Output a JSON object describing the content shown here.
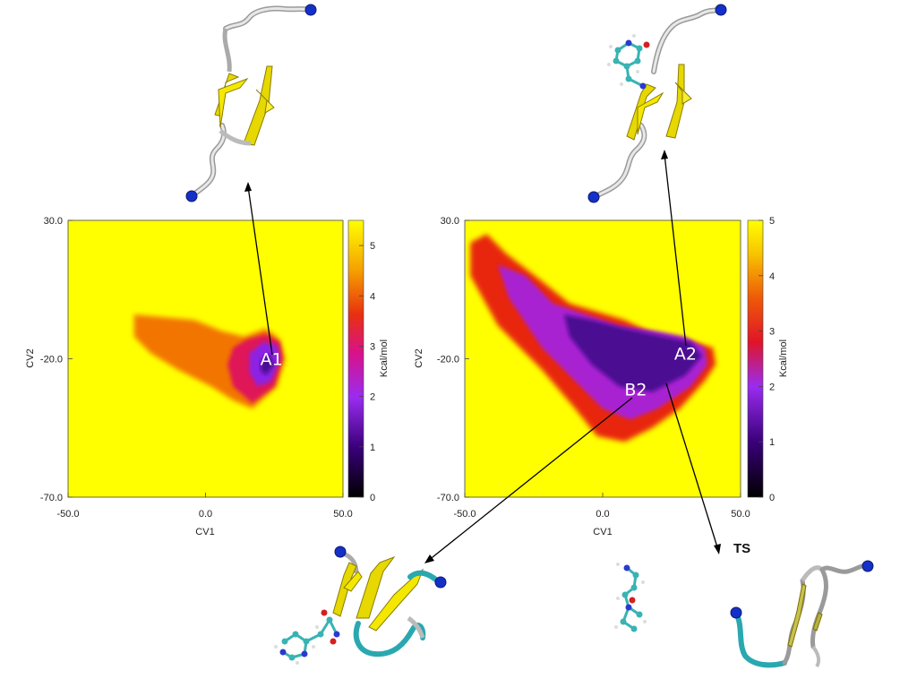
{
  "chart_data": [
    {
      "type": "heatmap",
      "title": "",
      "xlabel": "CV1",
      "ylabel": "CV2",
      "xlim": [
        -50,
        50
      ],
      "ylim": [
        -70,
        30
      ],
      "xticks": [
        "-50.0",
        "0.0",
        "50.0"
      ],
      "yticks": [
        "30.0",
        "-20.0",
        "-70.0"
      ],
      "colorbar": {
        "label": "Kcal/mol",
        "range": [
          0,
          5.5
        ],
        "ticks": [
          "0",
          "1",
          "2",
          "3",
          "4",
          "5"
        ]
      },
      "background_value": 5.5,
      "regions": [
        {
          "name": "outer",
          "value": 4.2,
          "points": [
            [
              -26,
              -4
            ],
            [
              -15,
              -5
            ],
            [
              -4,
              -6
            ],
            [
              6,
              -10
            ],
            [
              14,
              -12
            ],
            [
              22,
              -9
            ],
            [
              27,
              -13
            ],
            [
              29,
              -20
            ],
            [
              26,
              -30
            ],
            [
              17,
              -38
            ],
            [
              10,
              -35
            ],
            [
              2,
              -30
            ],
            [
              -10,
              -24
            ],
            [
              -20,
              -18
            ],
            [
              -26,
              -12
            ]
          ]
        },
        {
          "name": "mid",
          "value": 3.0,
          "points": [
            [
              10,
              -16
            ],
            [
              15,
              -13
            ],
            [
              22,
              -11
            ],
            [
              27,
              -14
            ],
            [
              28,
              -20
            ],
            [
              25,
              -30
            ],
            [
              17,
              -36
            ],
            [
              10,
              -30
            ],
            [
              8,
              -22
            ]
          ]
        },
        {
          "name": "basin",
          "value": 1.9,
          "points": [
            [
              16,
              -18
            ],
            [
              21,
              -14
            ],
            [
              26,
              -15
            ],
            [
              27,
              -20
            ],
            [
              24,
              -28
            ],
            [
              19,
              -30
            ],
            [
              16,
              -25
            ]
          ]
        },
        {
          "name": "core",
          "value": 1.2,
          "points": [
            [
              20,
              -21
            ],
            [
              23,
              -18
            ],
            [
              25,
              -22
            ],
            [
              22,
              -26
            ],
            [
              20,
              -24
            ]
          ]
        }
      ],
      "annotations": [
        {
          "text": "A1",
          "x": 24,
          "y": -20
        }
      ]
    },
    {
      "type": "heatmap",
      "title": "",
      "xlabel": "CV1",
      "ylabel": "CV2",
      "xlim": [
        -50,
        50
      ],
      "ylim": [
        -70,
        30
      ],
      "xticks": [
        "-50.0",
        "0.0",
        "50.0"
      ],
      "yticks": [
        "30.0",
        "-20.0",
        "-70.0"
      ],
      "colorbar": {
        "label": "Kcal/mol",
        "range": [
          0,
          5
        ],
        "ticks": [
          "0",
          "1",
          "2",
          "3",
          "4",
          "5"
        ]
      },
      "background_value": 5.0,
      "regions": [
        {
          "name": "outer",
          "value": 3.5,
          "points": [
            [
              -48,
              22
            ],
            [
              -42,
              25
            ],
            [
              -35,
              18
            ],
            [
              -22,
              8
            ],
            [
              -12,
              0
            ],
            [
              -2,
              -3
            ],
            [
              8,
              -6
            ],
            [
              20,
              -12
            ],
            [
              33,
              -14
            ],
            [
              40,
              -16
            ],
            [
              41,
              -22
            ],
            [
              37,
              -28
            ],
            [
              28,
              -38
            ],
            [
              18,
              -45
            ],
            [
              8,
              -50
            ],
            [
              -2,
              -48
            ],
            [
              -10,
              -38
            ],
            [
              -22,
              -24
            ],
            [
              -38,
              -8
            ],
            [
              -48,
              10
            ]
          ]
        },
        {
          "name": "mid",
          "value": 2.2,
          "points": [
            [
              -38,
              14
            ],
            [
              -28,
              10
            ],
            [
              -18,
              0
            ],
            [
              -6,
              -4
            ],
            [
              6,
              -8
            ],
            [
              20,
              -10
            ],
            [
              30,
              -12
            ],
            [
              37,
              -16
            ],
            [
              38,
              -22
            ],
            [
              32,
              -30
            ],
            [
              20,
              -38
            ],
            [
              10,
              -42
            ],
            [
              0,
              -38
            ],
            [
              -10,
              -28
            ],
            [
              -22,
              -16
            ],
            [
              -34,
              2
            ]
          ]
        },
        {
          "name": "basin",
          "value": 1.2,
          "points": [
            [
              -14,
              -4
            ],
            [
              -4,
              -6
            ],
            [
              8,
              -9
            ],
            [
              22,
              -12
            ],
            [
              32,
              -14
            ],
            [
              36,
              -19
            ],
            [
              30,
              -26
            ],
            [
              18,
              -32
            ],
            [
              6,
              -30
            ],
            [
              -4,
              -22
            ],
            [
              -12,
              -12
            ]
          ]
        }
      ],
      "annotations": [
        {
          "text": "A2",
          "x": 30,
          "y": -18
        },
        {
          "text": "B2",
          "x": 12,
          "y": -31
        }
      ]
    }
  ],
  "labels": {
    "ts": "TS"
  }
}
